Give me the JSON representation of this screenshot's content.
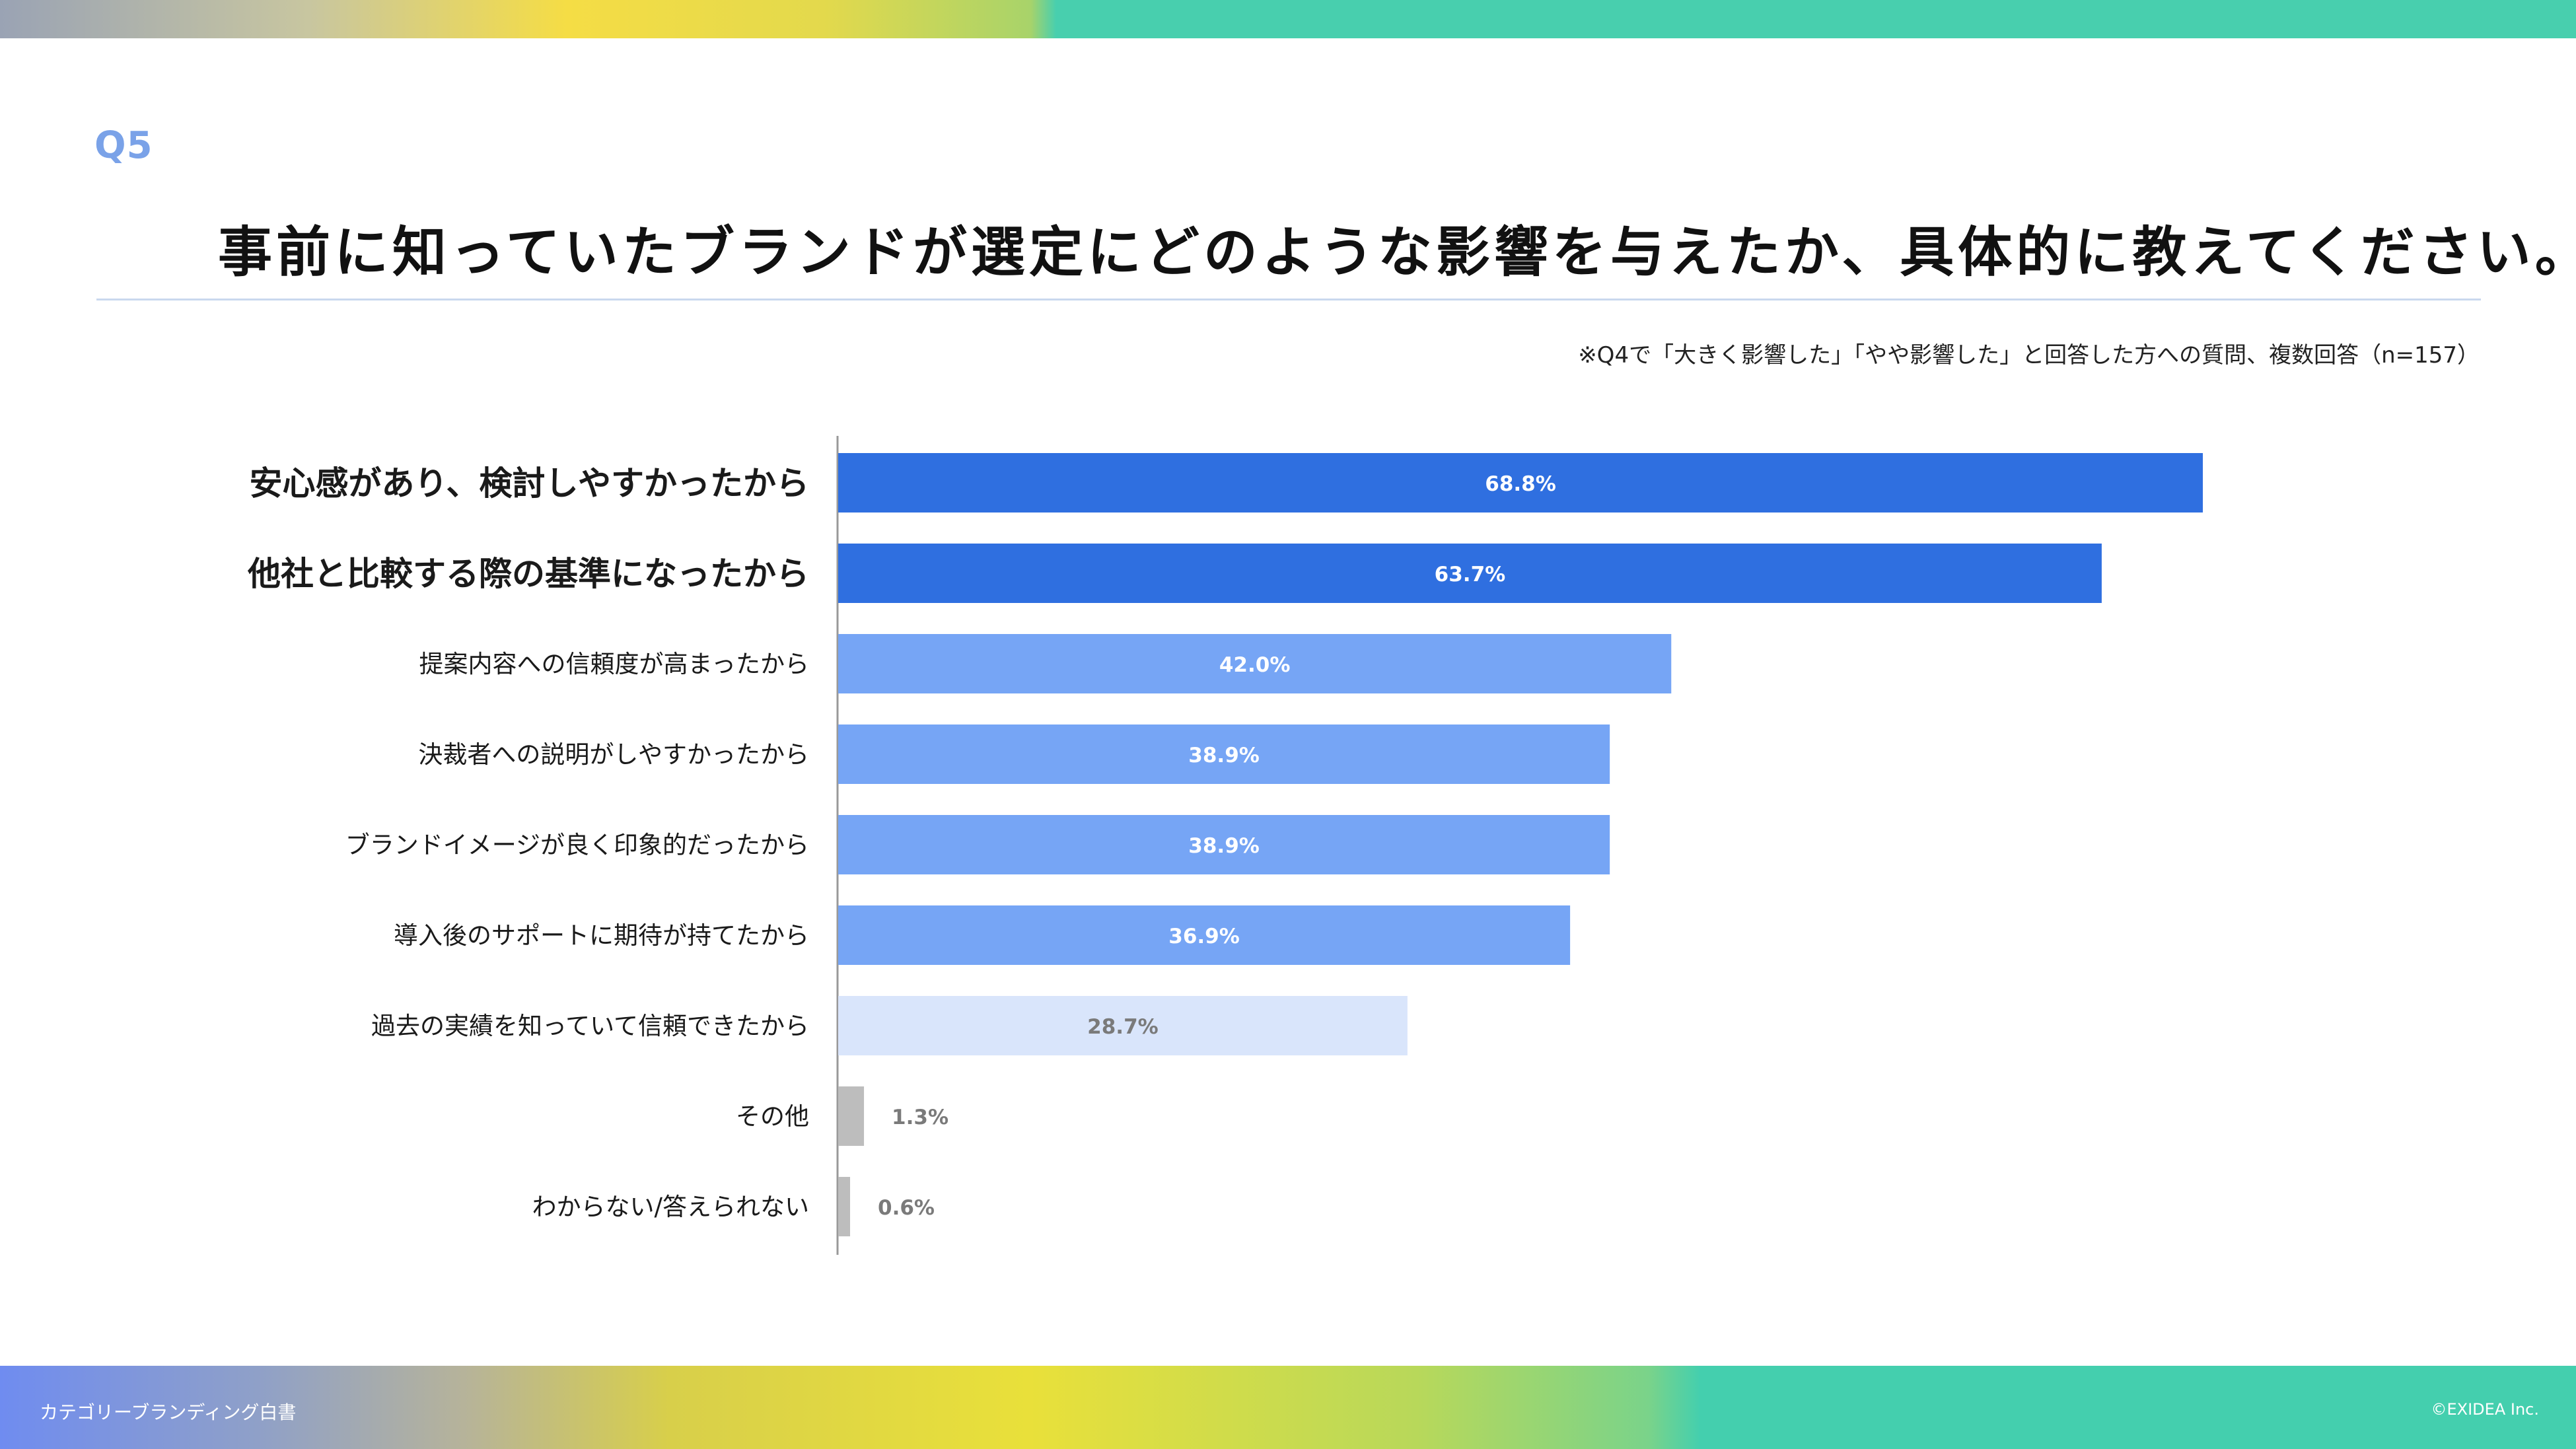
{
  "question_label": "Q5",
  "title": "事前に知っていたブランドが選定にどのような影響を与えたか、具体的に教えてください。",
  "note": "※Q4で「大きく影響した」「やや影響した」と回答した方への質問、複数回答（n=157）",
  "footer": {
    "left": "カテゴリーブランディング白書",
    "right": "©EXIDEA Inc."
  },
  "colors": {
    "top": "#2f6fe0",
    "mid": "#76a5f5",
    "light": "#d9e5fb",
    "gray": "#bdbdbd",
    "label_top": "#ffffff",
    "label_light": "#7a7a7a"
  },
  "chart_data": {
    "type": "bar",
    "orientation": "horizontal",
    "title": "事前に知っていたブランドが選定にどのような影響を与えたか、具体的に教えてください。",
    "xlabel": "",
    "ylabel": "",
    "xlim": [
      0,
      100
    ],
    "categories": [
      "安心感があり、検討しやすかったから",
      "他社と比較する際の基準になったから",
      "提案内容への信頼度が高まったから",
      "決裁者への説明がしやすかったから",
      "ブランドイメージが良く印象的だったから",
      "導入後のサポートに期待が持てたから",
      "過去の実績を知っていて信頼できたから",
      "その他",
      "わからない/答えられない"
    ],
    "values": [
      68.8,
      63.7,
      42.0,
      38.9,
      38.9,
      36.9,
      28.7,
      1.3,
      0.6
    ],
    "value_labels": [
      "68.8%",
      "63.7%",
      "42.0%",
      "38.9%",
      "38.9%",
      "36.9%",
      "28.7%",
      "1.3%",
      "0.6%"
    ],
    "tiers": [
      "top",
      "top",
      "mid",
      "mid",
      "mid",
      "mid",
      "light",
      "gray",
      "gray"
    ]
  }
}
